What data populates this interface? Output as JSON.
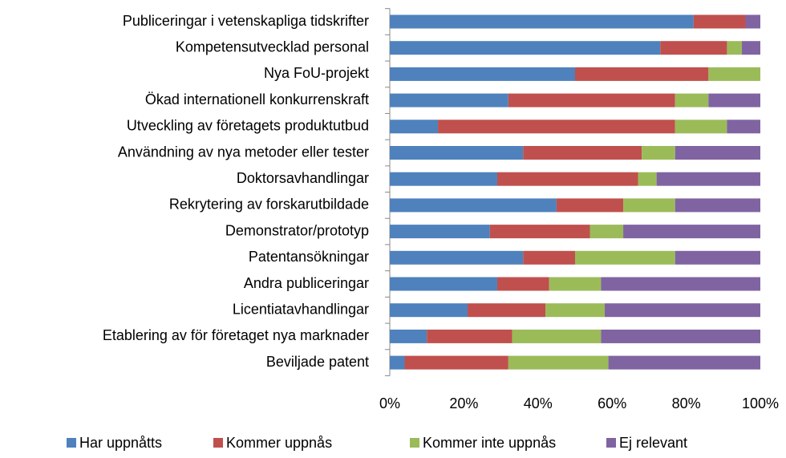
{
  "chart_data": {
    "type": "stacked_barh",
    "categories": [
      "Publiceringar i vetenskapliga tidskrifter",
      "Kompetensutvecklad personal",
      "Nya FoU-projekt",
      "Ökad internationell konkurrenskraft",
      "Utveckling av företagets produktutbud",
      "Användning av nya metoder eller tester",
      "Doktorsavhandlingar",
      "Rekrytering av forskarutbildade",
      "Demonstrator/prototyp",
      "Patentansökningar",
      "Andra publiceringar",
      "Licentiatavhandlingar",
      "Etablering av för företaget nya marknader",
      "Beviljade patent"
    ],
    "series": [
      {
        "name": "Har uppnåtts",
        "color": "#4f81bd",
        "values": [
          82,
          73,
          50,
          32,
          13,
          36,
          29,
          45,
          27,
          36,
          29,
          21,
          10,
          4
        ]
      },
      {
        "name": "Kommer uppnås",
        "color": "#c0504d",
        "values": [
          14,
          18,
          36,
          45,
          64,
          32,
          38,
          18,
          27,
          14,
          14,
          21,
          23,
          28
        ]
      },
      {
        "name": "Kommer inte uppnås",
        "color": "#9bbb59",
        "values": [
          0,
          4,
          14,
          9,
          14,
          9,
          5,
          14,
          9,
          27,
          14,
          16,
          24,
          27
        ]
      },
      {
        "name": "Ej relevant",
        "color": "#8064a2",
        "values": [
          4,
          5,
          0,
          14,
          9,
          23,
          28,
          23,
          37,
          23,
          43,
          42,
          43,
          41
        ]
      }
    ],
    "xlim": [
      0,
      100
    ],
    "xticks": [
      {
        "value": 0,
        "label": "0%"
      },
      {
        "value": 20,
        "label": "20%"
      },
      {
        "value": 40,
        "label": "40%"
      },
      {
        "value": 60,
        "label": "60%"
      },
      {
        "value": 80,
        "label": "80%"
      },
      {
        "value": 100,
        "label": "100%"
      }
    ],
    "grid": false,
    "legend": "bottom"
  }
}
